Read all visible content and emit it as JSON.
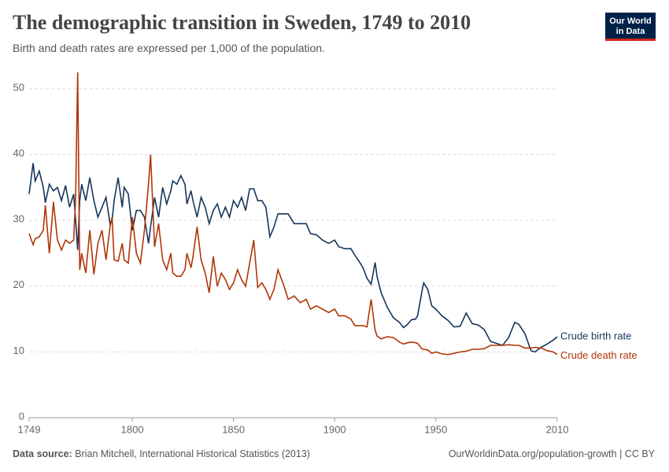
{
  "chart_data": {
    "type": "line",
    "title": "The demographic transition in Sweden, 1749 to 2010",
    "subtitle": "Birth and death rates are expressed per 1,000 of the population.",
    "logo": "Our World in Data",
    "source_label": "Data source:",
    "source": "Brian Mitchell, International Historical Statistics (2013)",
    "url": "OurWorldinData.org/population-growth | CC BY",
    "xlim": [
      1749,
      2010
    ],
    "xticks": [
      1749,
      1800,
      1850,
      1900,
      1950,
      2010
    ],
    "ylim": [
      0,
      52.5
    ],
    "yticks": [
      0,
      10,
      20,
      30,
      40,
      50
    ],
    "grid": true,
    "x": [
      1749,
      1751,
      1752,
      1754,
      1756,
      1757,
      1759,
      1761,
      1763,
      1765,
      1767,
      1769,
      1771,
      1772,
      1773,
      1774,
      1775,
      1777,
      1779,
      1781,
      1783,
      1785,
      1787,
      1789,
      1790,
      1791,
      1793,
      1795,
      1796,
      1798,
      1800,
      1802,
      1804,
      1806,
      1808,
      1809,
      1811,
      1813,
      1815,
      1817,
      1819,
      1820,
      1822,
      1824,
      1826,
      1827,
      1829,
      1830,
      1832,
      1834,
      1836,
      1838,
      1840,
      1842,
      1844,
      1846,
      1848,
      1850,
      1852,
      1854,
      1856,
      1858,
      1860,
      1862,
      1864,
      1866,
      1868,
      1870,
      1872,
      1875,
      1877,
      1880,
      1883,
      1886,
      1888,
      1891,
      1894,
      1897,
      1900,
      1902,
      1905,
      1908,
      1910,
      1912,
      1914,
      1916,
      1918,
      1920,
      1921,
      1923,
      1926,
      1929,
      1932,
      1934,
      1936,
      1938,
      1940,
      1941,
      1943,
      1944,
      1946,
      1948,
      1950,
      1953,
      1956,
      1959,
      1962,
      1965,
      1968,
      1971,
      1974,
      1977,
      1980,
      1983,
      1986,
      1989,
      1991,
      1994,
      1997,
      1999,
      2002,
      2005,
      2008,
      2010
    ],
    "series": [
      {
        "name": "Crude birth rate",
        "color": "#15355a",
        "values": [
          34,
          38.7,
          36,
          37.5,
          35,
          32.7,
          35.5,
          34.5,
          35,
          33,
          35.3,
          32,
          34,
          30,
          25.5,
          33,
          35.5,
          33,
          36.5,
          33,
          30.5,
          32,
          33.5,
          29.5,
          30,
          33,
          36.5,
          32,
          35,
          34,
          28.5,
          31.5,
          31.5,
          30.5,
          26.5,
          29,
          33.5,
          30.5,
          35,
          32.5,
          34.5,
          36,
          35.5,
          36.8,
          35.5,
          32.5,
          34.5,
          33,
          30.5,
          33.5,
          32,
          29.5,
          31.5,
          32.5,
          30.5,
          32,
          30.5,
          33,
          32,
          33.5,
          31.5,
          34.8,
          34.8,
          33,
          33,
          32,
          27.5,
          29,
          31,
          31,
          31,
          29.5,
          29.5,
          29.5,
          28,
          27.8,
          27,
          26.5,
          27,
          26,
          25.7,
          25.7,
          24.7,
          23.8,
          22.8,
          21.2,
          20.3,
          23.6,
          21.4,
          19,
          16.8,
          15.2,
          14.5,
          13.7,
          14.2,
          14.9,
          15,
          15.5,
          19,
          20.5,
          19.5,
          17,
          16.5,
          15.5,
          14.8,
          13.8,
          13.9,
          15.9,
          14.3,
          14.1,
          13.4,
          11.6,
          11.3,
          11,
          12.2,
          14.5,
          14.2,
          12.8,
          10.2,
          10,
          10.7,
          11.2,
          11.8,
          12.3
        ]
      },
      {
        "name": "Crude death rate",
        "color": "#b13507",
        "values": [
          28,
          26.3,
          27.2,
          27.5,
          28.5,
          32.3,
          25,
          32.8,
          27,
          25.5,
          27,
          26.5,
          27,
          33.5,
          52.5,
          22.5,
          25,
          22,
          28.5,
          21.8,
          26.5,
          28.5,
          24,
          29,
          30.5,
          24,
          23.8,
          26.5,
          24,
          23.5,
          30.5,
          25,
          23.5,
          28.5,
          35.5,
          40,
          26,
          29.5,
          24,
          22.5,
          25,
          22,
          21.5,
          21.5,
          22.5,
          25,
          22.8,
          24.5,
          29,
          24,
          22,
          19,
          24.5,
          20,
          22,
          21,
          19.5,
          20.5,
          22.5,
          21,
          20,
          23.5,
          27,
          19.8,
          20.5,
          19.5,
          18,
          19.5,
          22.5,
          20,
          18,
          18.5,
          17.5,
          18,
          16.5,
          17,
          16.5,
          16,
          16.5,
          15.5,
          15.5,
          15,
          14,
          14,
          14,
          13.8,
          18,
          13.3,
          12.4,
          12,
          12.3,
          12.2,
          11.5,
          11.2,
          11.4,
          11.5,
          11.4,
          11.3,
          10.5,
          10.4,
          10.3,
          9.8,
          10,
          9.7,
          9.6,
          9.8,
          10,
          10.1,
          10.4,
          10.4,
          10.5,
          11,
          11,
          11,
          11.1,
          11,
          11,
          10.6,
          10.6,
          10.7,
          10.6,
          10.2,
          10,
          9.6
        ]
      }
    ]
  }
}
